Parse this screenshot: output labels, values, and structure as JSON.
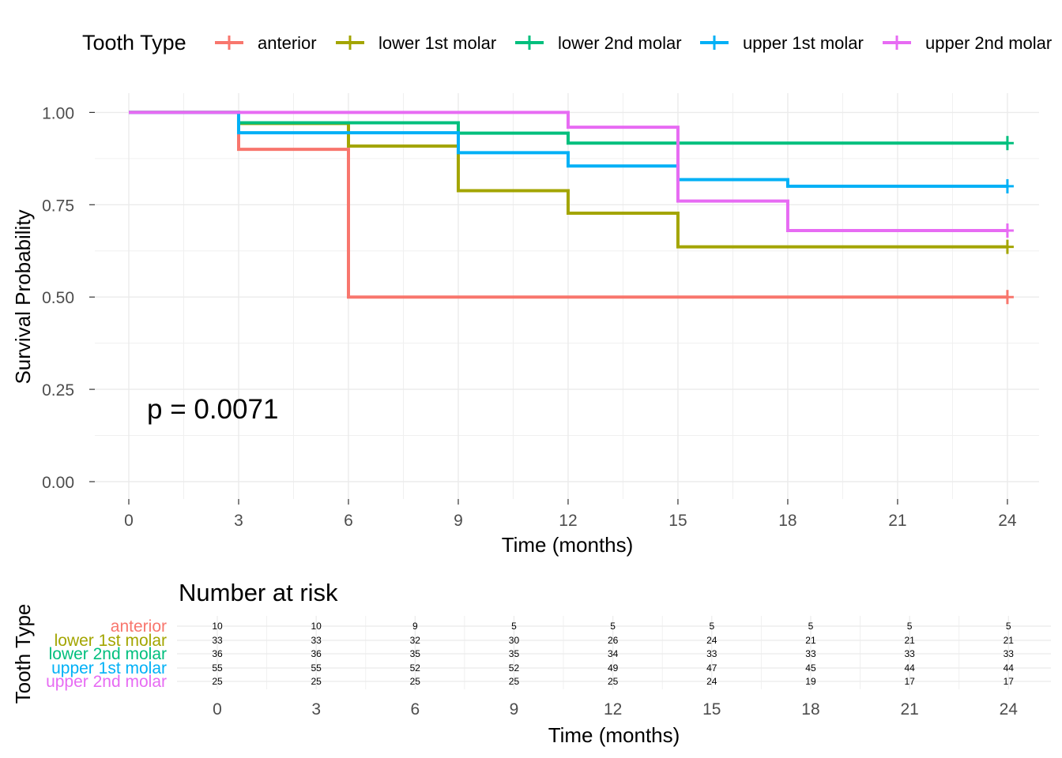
{
  "chart_data": [
    {
      "type": "line",
      "subtype": "kaplan-meier-step",
      "legend": {
        "title": "Tooth Type",
        "position": "top",
        "entries": [
          "anterior",
          "lower 1st molar",
          "lower 2nd molar",
          "upper 1st molar",
          "upper 2nd molar"
        ]
      },
      "xlabel": "Time (months)",
      "ylabel": "Survival Probability",
      "xlim": [
        0,
        24
      ],
      "ylim": [
        0,
        1
      ],
      "xticks": [
        0,
        3,
        6,
        9,
        12,
        15,
        18,
        21,
        24
      ],
      "yticks": [
        0,
        0.25,
        0.5,
        0.75,
        1.0
      ],
      "ytick_labels": [
        "0.00",
        "0.25",
        "0.50",
        "0.75",
        "1.00"
      ],
      "grid": true,
      "annotation": "p = 0.0071",
      "series": [
        {
          "name": "anterior",
          "color": "#F8766D",
          "steps": [
            [
              0,
              1.0
            ],
            [
              3,
              0.9
            ],
            [
              6,
              0.5
            ]
          ],
          "censor": [
            [
              24,
              0.5
            ]
          ]
        },
        {
          "name": "lower 1st molar",
          "color": "#A3A500",
          "steps": [
            [
              0,
              1.0
            ],
            [
              3,
              0.97
            ],
            [
              6,
              0.909
            ],
            [
              9,
              0.788
            ],
            [
              12,
              0.727
            ],
            [
              15,
              0.636
            ]
          ],
          "censor": [
            [
              24,
              0.636
            ]
          ]
        },
        {
          "name": "lower 2nd molar",
          "color": "#00BF7D",
          "steps": [
            [
              0,
              1.0
            ],
            [
              3,
              0.972
            ],
            [
              9,
              0.944
            ],
            [
              12,
              0.917
            ]
          ],
          "censor": [
            [
              24,
              0.917
            ]
          ]
        },
        {
          "name": "upper 1st molar",
          "color": "#00B0F6",
          "steps": [
            [
              0,
              1.0
            ],
            [
              3,
              0.945
            ],
            [
              9,
              0.891
            ],
            [
              12,
              0.855
            ],
            [
              15,
              0.818
            ],
            [
              18,
              0.8
            ]
          ],
          "censor": [
            [
              24,
              0.8
            ]
          ]
        },
        {
          "name": "upper 2nd molar",
          "color": "#E76BF3",
          "steps": [
            [
              0,
              1.0
            ],
            [
              12,
              0.96
            ],
            [
              15,
              0.76
            ],
            [
              18,
              0.68
            ]
          ],
          "censor": [
            [
              24,
              0.68
            ]
          ]
        }
      ]
    },
    {
      "type": "table",
      "title": "Number at risk",
      "ylabel": "Tooth Type",
      "xlabel": "Time (months)",
      "times": [
        0,
        3,
        6,
        9,
        12,
        15,
        18,
        21,
        24
      ],
      "rows": [
        {
          "name": "anterior",
          "color": "#F8766D",
          "values": [
            10,
            10,
            9,
            5,
            5,
            5,
            5,
            5,
            5
          ]
        },
        {
          "name": "lower 1st molar",
          "color": "#A3A500",
          "values": [
            33,
            33,
            32,
            30,
            26,
            24,
            21,
            21,
            21
          ]
        },
        {
          "name": "lower 2nd molar",
          "color": "#00BF7D",
          "values": [
            36,
            36,
            35,
            35,
            34,
            33,
            33,
            33,
            33
          ]
        },
        {
          "name": "upper 1st molar",
          "color": "#00B0F6",
          "values": [
            55,
            55,
            52,
            52,
            49,
            47,
            45,
            44,
            44
          ]
        },
        {
          "name": "upper 2nd molar",
          "color": "#E76BF3",
          "values": [
            25,
            25,
            25,
            25,
            25,
            24,
            19,
            17,
            17
          ]
        }
      ]
    }
  ]
}
